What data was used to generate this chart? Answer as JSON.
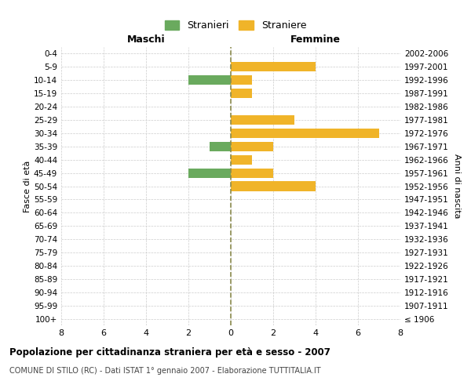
{
  "age_groups": [
    "100+",
    "95-99",
    "90-94",
    "85-89",
    "80-84",
    "75-79",
    "70-74",
    "65-69",
    "60-64",
    "55-59",
    "50-54",
    "45-49",
    "40-44",
    "35-39",
    "30-34",
    "25-29",
    "20-24",
    "15-19",
    "10-14",
    "5-9",
    "0-4"
  ],
  "birth_years": [
    "≤ 1906",
    "1907-1911",
    "1912-1916",
    "1917-1921",
    "1922-1926",
    "1927-1931",
    "1932-1936",
    "1937-1941",
    "1942-1946",
    "1947-1951",
    "1952-1956",
    "1957-1961",
    "1962-1966",
    "1967-1971",
    "1972-1976",
    "1977-1981",
    "1982-1986",
    "1987-1991",
    "1992-1996",
    "1997-2001",
    "2002-2006"
  ],
  "males": [
    0,
    0,
    0,
    0,
    0,
    0,
    0,
    0,
    0,
    0,
    0,
    2,
    0,
    1,
    0,
    0,
    0,
    0,
    2,
    0,
    0
  ],
  "females": [
    0,
    0,
    0,
    0,
    0,
    0,
    0,
    0,
    0,
    0,
    4,
    2,
    1,
    2,
    7,
    3,
    0,
    1,
    1,
    4,
    0
  ],
  "male_color": "#6aaa5e",
  "female_color": "#f0b429",
  "xlabel_left": "Maschi",
  "xlabel_right": "Femmine",
  "ylabel_left": "Fasce di età",
  "ylabel_right": "Anni di nascita",
  "xlim": 8,
  "title": "Popolazione per cittadinanza straniera per età e sesso - 2007",
  "subtitle": "COMUNE DI STILO (RC) - Dati ISTAT 1° gennaio 2007 - Elaborazione TUTTITALIA.IT",
  "legend_males": "Stranieri",
  "legend_females": "Straniere",
  "background_color": "#ffffff",
  "grid_color": "#cccccc",
  "center_line_color": "#8b8b4e"
}
